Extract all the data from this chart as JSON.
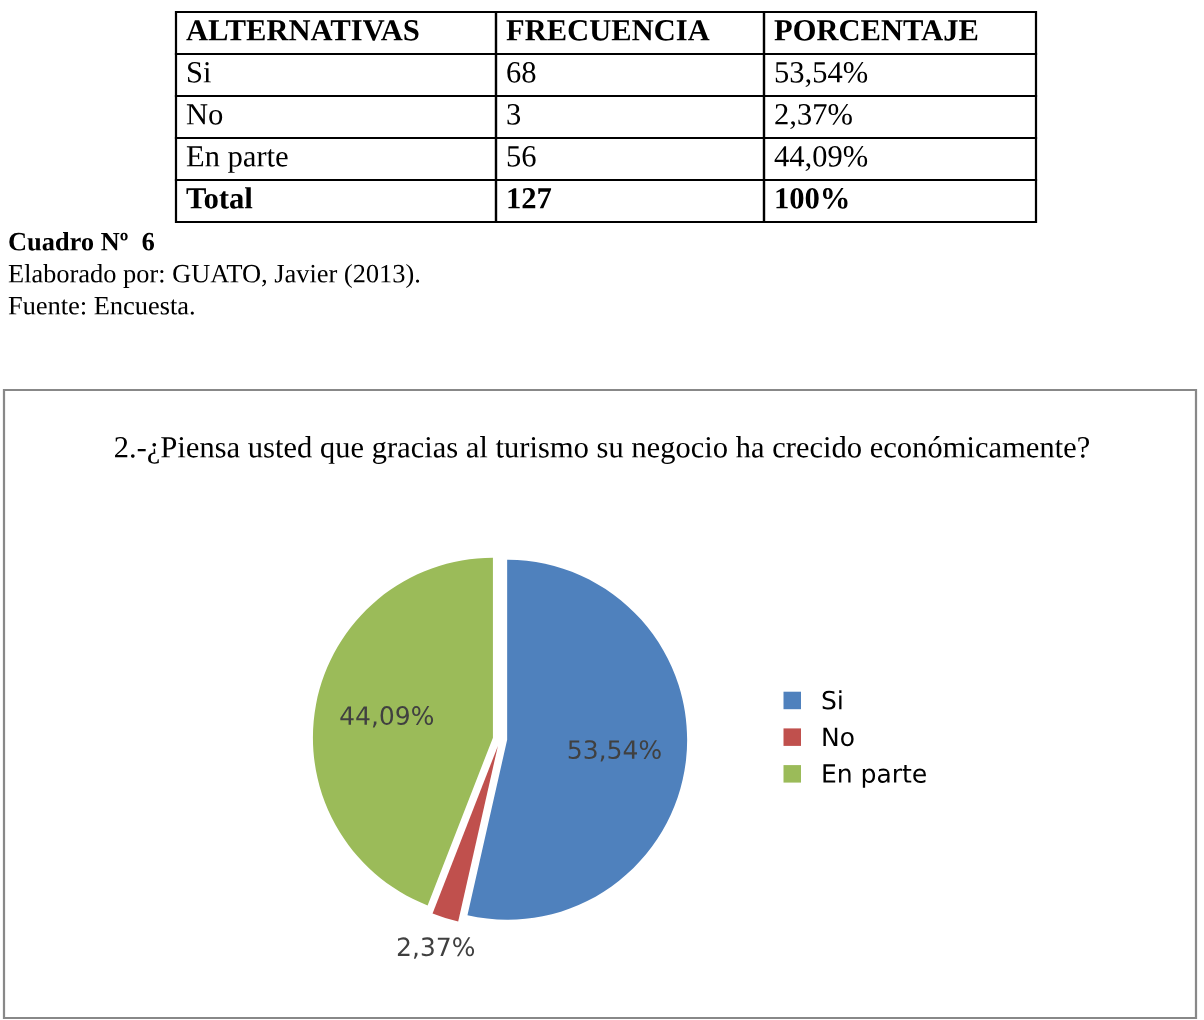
{
  "chart_data": {
    "type": "pie",
    "title": "2.-¿Piensa usted que gracias al turismo su negocio ha crecido económicamente?",
    "categories": [
      "Si",
      "No",
      "En parte"
    ],
    "values": [
      53.54,
      2.37,
      44.09
    ],
    "colors": [
      "#4f81bd",
      "#c0504d",
      "#9bbb59"
    ],
    "value_labels": [
      "53,54%",
      "2,37%",
      "44,09%"
    ],
    "legend": "right",
    "annotations": [
      "ALTERNATIVAS",
      "FRECUENCIA",
      "PORCENTAJE",
      "Si",
      "68",
      "53,54%",
      "No",
      "3",
      "2,37%",
      "En parte",
      "56",
      "44,09%",
      "Total",
      "127",
      "100%",
      "Cuadro Nº  6",
      "Elaborado por: GUATO, Javier (2013).",
      "Fuente: Encuesta."
    ]
  }
}
